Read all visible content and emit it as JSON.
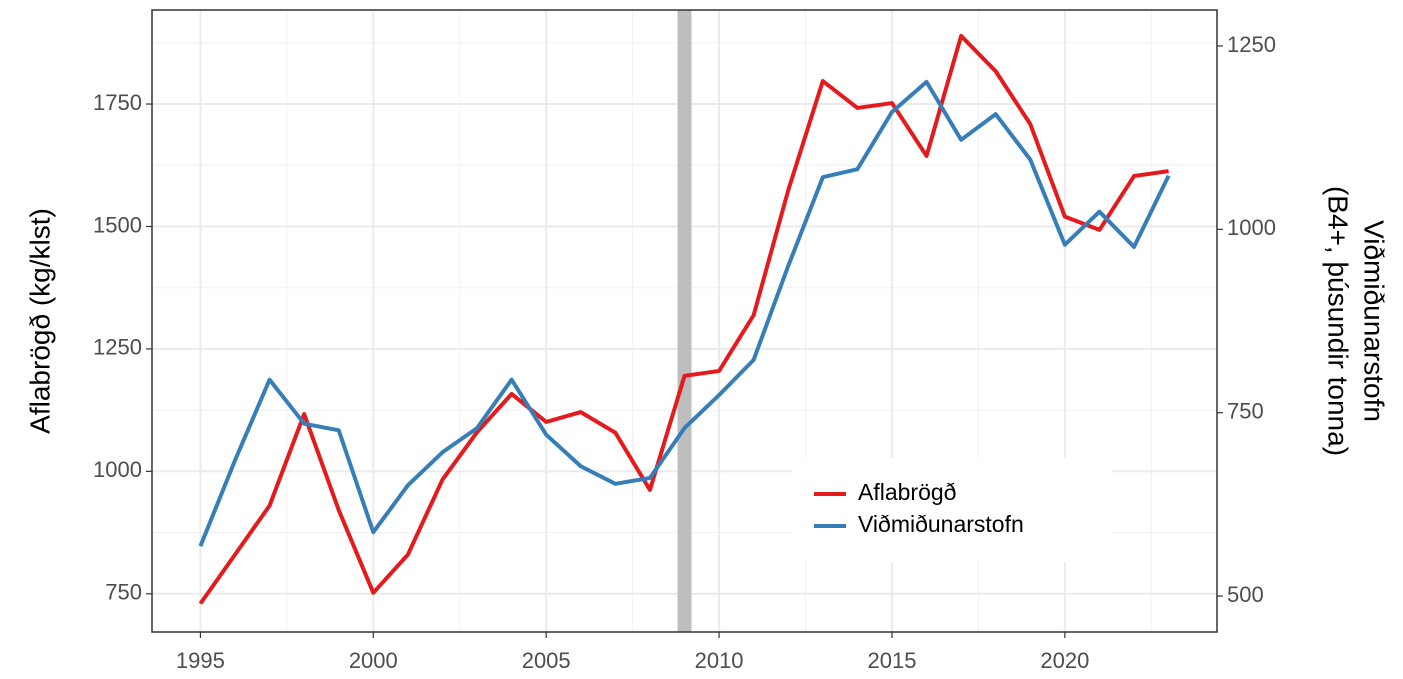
{
  "chart_data": {
    "type": "line",
    "ylabel": "Aflabrögð (kg/klst)",
    "y2label": [
      "Viðmiðunarstofn",
      "(B4+, þúsundir tonna)"
    ],
    "x": [
      1995,
      1996,
      1997,
      1998,
      1999,
      2000,
      2001,
      2002,
      2003,
      2004,
      2005,
      2006,
      2007,
      2008,
      2009,
      2010,
      2011,
      2012,
      2013,
      2014,
      2015,
      2016,
      2017,
      2018,
      2019,
      2020,
      2021,
      2022,
      2023
    ],
    "series": [
      {
        "name": "Aflabrögð",
        "color": "#e41a1c",
        "axis": "y",
        "values": [
          730,
          830,
          930,
          1117,
          921,
          752,
          830,
          983,
          1080,
          1158,
          1101,
          1121,
          1079,
          962,
          1195,
          1205,
          1319,
          1574,
          1797,
          1742,
          1752,
          1644,
          1889,
          1817,
          1709,
          1520,
          1493,
          1603,
          1613
        ]
      },
      {
        "name": "Viðmiðunarstofn",
        "color": "#377eb8",
        "axis": "y2",
        "values": [
          568,
          685,
          795,
          735,
          726,
          587,
          651,
          696,
          729,
          795,
          720,
          677,
          653,
          661,
          729,
          774,
          822,
          950,
          1071,
          1082,
          1160,
          1201,
          1122,
          1157,
          1095,
          979,
          1024,
          976,
          1073
        ]
      }
    ],
    "vline_x": 2009,
    "vline_color": "#bebebe",
    "xlim": [
      1993.6,
      2024.4
    ],
    "xticks": [
      1995,
      2000,
      2005,
      2010,
      2015,
      2020
    ],
    "ylim": [
      672,
      1942
    ],
    "yticks": [
      750,
      1000,
      1250,
      1500,
      1750
    ],
    "y2lim": [
      451,
      1299
    ],
    "y2ticks": [
      500,
      750,
      1000,
      1250
    ],
    "grid": true,
    "legend": "bottom-right"
  }
}
